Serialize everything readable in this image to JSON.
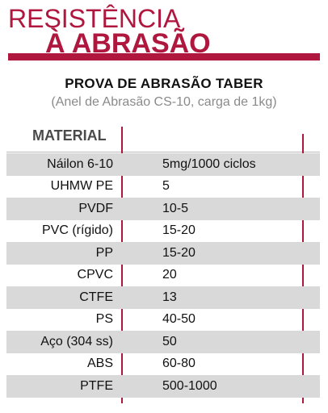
{
  "heading": {
    "line1": "RESISTÊNCIA",
    "line2": "À ABRASÃO"
  },
  "test": {
    "name": "PROVA DE ABRASÃO TABER",
    "conditions": "(Anel de Abrasão CS-10, carga de 1kg)"
  },
  "table": {
    "column_header": "MATERIAL",
    "rows": [
      {
        "material": "Náilon 6-10",
        "value": "5mg/1000 ciclos"
      },
      {
        "material": "UHMW PE",
        "value": "5"
      },
      {
        "material": "PVDF",
        "value": "10-5"
      },
      {
        "material": "PVC (rígido)",
        "value": "15-20"
      },
      {
        "material": "PP",
        "value": "15-20"
      },
      {
        "material": "CPVC",
        "value": "20"
      },
      {
        "material": "CTFE",
        "value": "13"
      },
      {
        "material": "PS",
        "value": "40-50"
      },
      {
        "material": "Aço (304 ss)",
        "value": "50"
      },
      {
        "material": "ABS",
        "value": "60-80"
      },
      {
        "material": "PTFE",
        "value": "500-1000"
      }
    ]
  },
  "colors": {
    "accent": "#b0173e",
    "row_shade": "#d9d9d9"
  }
}
